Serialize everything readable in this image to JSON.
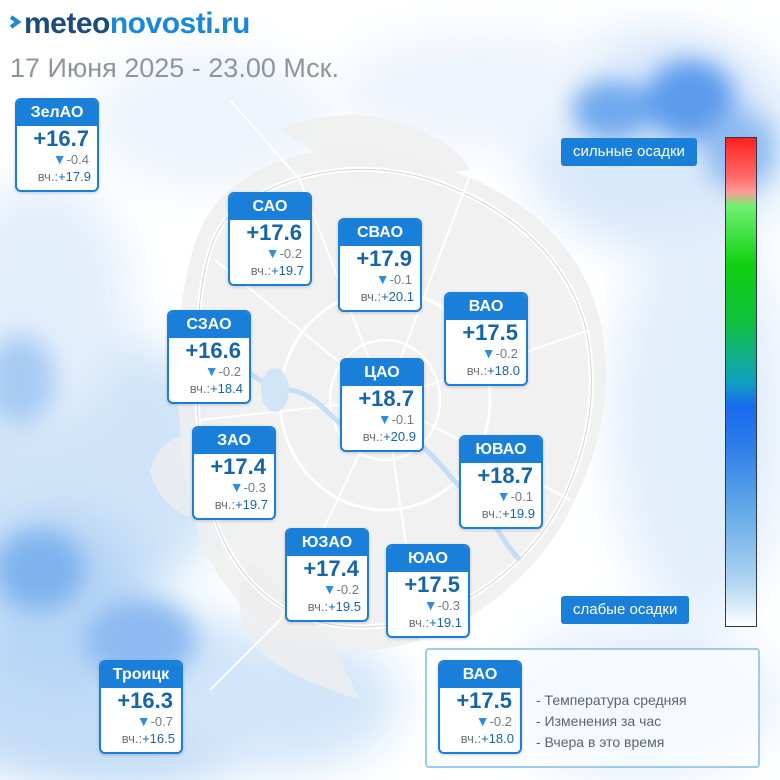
{
  "header": {
    "logo_dark": "meteo",
    "logo_blue": "novosti.ru",
    "logo_icon": "arrow-logo-icon",
    "subtitle": "17 Июня 2025 - 23.00 Мск."
  },
  "precipitation_scale": {
    "top_label": "сильные осадки",
    "bottom_label": "слабые осадки",
    "colors": [
      "#ff2020",
      "#10c040",
      "#1a6af0",
      "#ffffff"
    ]
  },
  "colors": {
    "card_header": "#1a7fd8",
    "temperature": "#1565a8",
    "change_arrow": "#2f8de0"
  },
  "districts": [
    {
      "name": "ЗелАО",
      "temp": "+16.7",
      "change": "-0.4",
      "yesterday_label": "вч.:",
      "yesterday": "+17.9"
    },
    {
      "name": "САО",
      "temp": "+17.6",
      "change": "-0.2",
      "yesterday_label": "вч.:",
      "yesterday": "+19.7"
    },
    {
      "name": "СВАО",
      "temp": "+17.9",
      "change": "-0.1",
      "yesterday_label": "вч.:",
      "yesterday": "+20.1"
    },
    {
      "name": "СЗАО",
      "temp": "+16.6",
      "change": "-0.2",
      "yesterday_label": "вч.:",
      "yesterday": "+18.4"
    },
    {
      "name": "ВАО",
      "temp": "+17.5",
      "change": "-0.2",
      "yesterday_label": "вч.:",
      "yesterday": "+18.0"
    },
    {
      "name": "ЦАО",
      "temp": "+18.7",
      "change": "-0.1",
      "yesterday_label": "вч.:",
      "yesterday": "+20.9"
    },
    {
      "name": "ЗАО",
      "temp": "+17.4",
      "change": "-0.3",
      "yesterday_label": "вч.:",
      "yesterday": "+19.7"
    },
    {
      "name": "ЮВАО",
      "temp": "+18.7",
      "change": "-0.1",
      "yesterday_label": "вч.:",
      "yesterday": "+19.9"
    },
    {
      "name": "ЮЗАО",
      "temp": "+17.4",
      "change": "-0.2",
      "yesterday_label": "вч.:",
      "yesterday": "+19.5"
    },
    {
      "name": "ЮАО",
      "temp": "+17.5",
      "change": "-0.3",
      "yesterday_label": "вч.:",
      "yesterday": "+19.1"
    },
    {
      "name": "Троицк",
      "temp": "+16.3",
      "change": "-0.7",
      "yesterday_label": "вч.:",
      "yesterday": "+16.5"
    }
  ],
  "legend": {
    "example": {
      "name": "ВАО",
      "temp": "+17.5",
      "change": "-0.2",
      "yesterday_label": "вч.:",
      "yesterday": "+18.0"
    },
    "lines": [
      "- Температура средняя",
      "- Изменения за час",
      "- Вчера в это время"
    ]
  }
}
